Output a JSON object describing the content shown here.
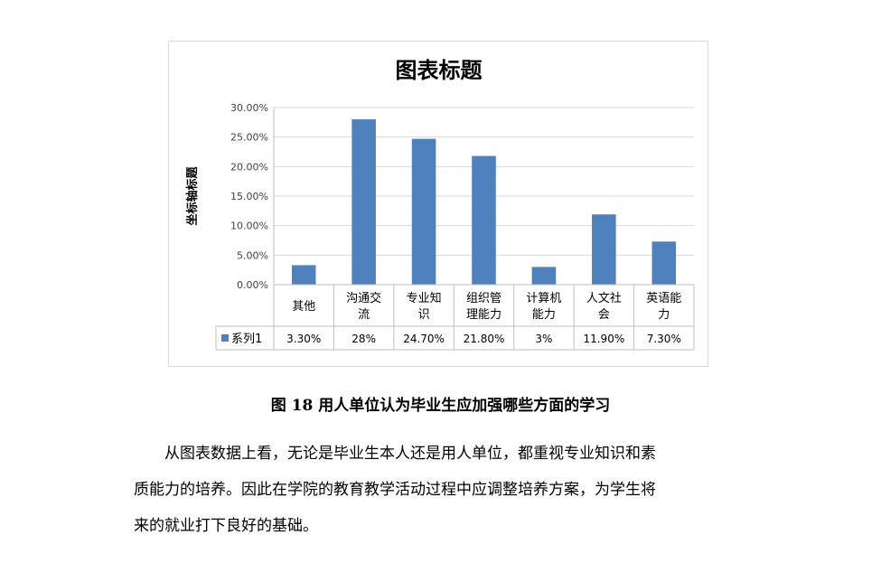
{
  "chart_data": {
    "type": "bar",
    "title": "图表标题",
    "ylabel": "坐标轴标题",
    "xlabel": "",
    "categories": [
      [
        "其他"
      ],
      [
        "沟通交",
        "流"
      ],
      [
        "专业知",
        "识"
      ],
      [
        "组织管",
        "理能力"
      ],
      [
        "计算机",
        "能力"
      ],
      [
        "人文社",
        "会"
      ],
      [
        "英语能",
        "力"
      ]
    ],
    "series": [
      {
        "name": "系列1",
        "values": [
          3.3,
          28,
          24.7,
          21.8,
          3,
          11.9,
          7.3
        ],
        "labels": [
          "3.30%",
          "28%",
          "24.70%",
          "21.80%",
          "3%",
          "11.90%",
          "7.30%"
        ],
        "color": "#4f81bd"
      }
    ],
    "ylim": [
      0,
      30
    ],
    "yticks": [
      "0.00%",
      "5.00%",
      "10.00%",
      "15.00%",
      "20.00%",
      "25.00%",
      "30.00%"
    ],
    "grid": true,
    "data_table": true
  },
  "caption": "图 18 用人单位认为毕业生应加强哪些方面的学习",
  "paragraph": {
    "lines": [
      "从图表数据上看，无论是毕业生本人还是用人单位，都重视专业知识和素",
      "质能力的培养。因此在学院的教育教学活动过程中应调整培养方案，为学生将",
      "来的就业打下良好的基础。"
    ]
  }
}
